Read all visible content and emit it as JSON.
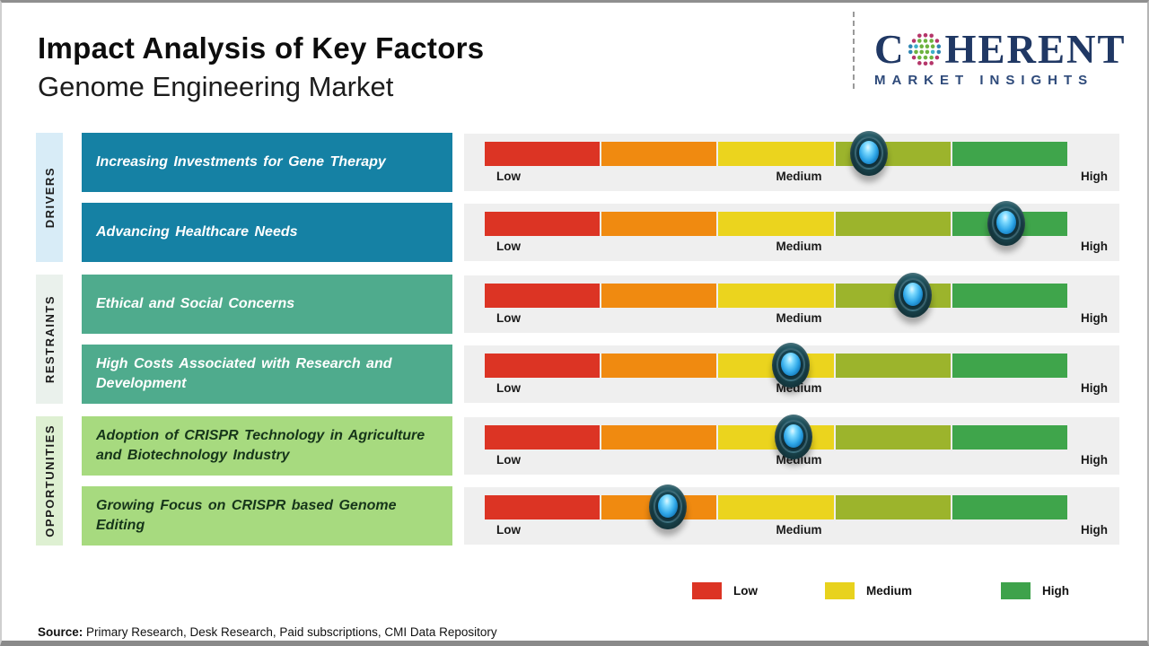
{
  "header": {
    "title": "Impact Analysis of Key Factors",
    "subtitle": "Genome Engineering Market"
  },
  "logo": {
    "brand_c": "C",
    "brand_rest": "HERENT",
    "tagline": "MARKET INSIGHTS",
    "brand_color": "#203864"
  },
  "sections": [
    {
      "label": "DRIVERS"
    },
    {
      "label": "RESTRAINTS"
    },
    {
      "label": "OPPORTUNITIES"
    }
  ],
  "gauge": {
    "segment_colors": [
      "#dc3424",
      "#f08a10",
      "#ebd41e",
      "#9cb42c",
      "#3fa54b"
    ],
    "scale_labels": [
      "Low",
      "Medium",
      "High"
    ]
  },
  "chart_data": {
    "type": "gauge",
    "title": "Impact Analysis of Key Factors",
    "subtitle": "Genome Engineering Market",
    "scale": {
      "labels": [
        "Low",
        "Medium",
        "High"
      ],
      "range": [
        0,
        100
      ]
    },
    "series": [
      {
        "category": "Drivers",
        "factor": "Increasing Investments for Gene Therapy",
        "impact_percent": 66
      },
      {
        "category": "Drivers",
        "factor": "Advancing Healthcare Needs",
        "impact_percent": 89.5
      },
      {
        "category": "Restraints",
        "factor": "Ethical and Social Concerns",
        "impact_percent": 73.5
      },
      {
        "category": "Restraints",
        "factor": "High Costs Associated with Research and Development",
        "impact_percent": 52.5
      },
      {
        "category": "Opportunities",
        "factor": "Adoption of CRISPR Technology in Agriculture and Biotechnology Industry",
        "impact_percent": 53
      },
      {
        "category": "Opportunities",
        "factor": "Growing Focus on CRISPR based Genome Editing",
        "impact_percent": 31.5
      }
    ],
    "legend_position": "bottom-right"
  },
  "legend": [
    {
      "label": "Low",
      "color": "#dc3424"
    },
    {
      "label": "Medium",
      "color": "#e8d21d"
    },
    {
      "label": "High",
      "color": "#3ea24b"
    }
  ],
  "source": {
    "prefix": "Source:",
    "text": " Primary Research, Desk Research, Paid subscriptions, CMI Data Repository"
  }
}
